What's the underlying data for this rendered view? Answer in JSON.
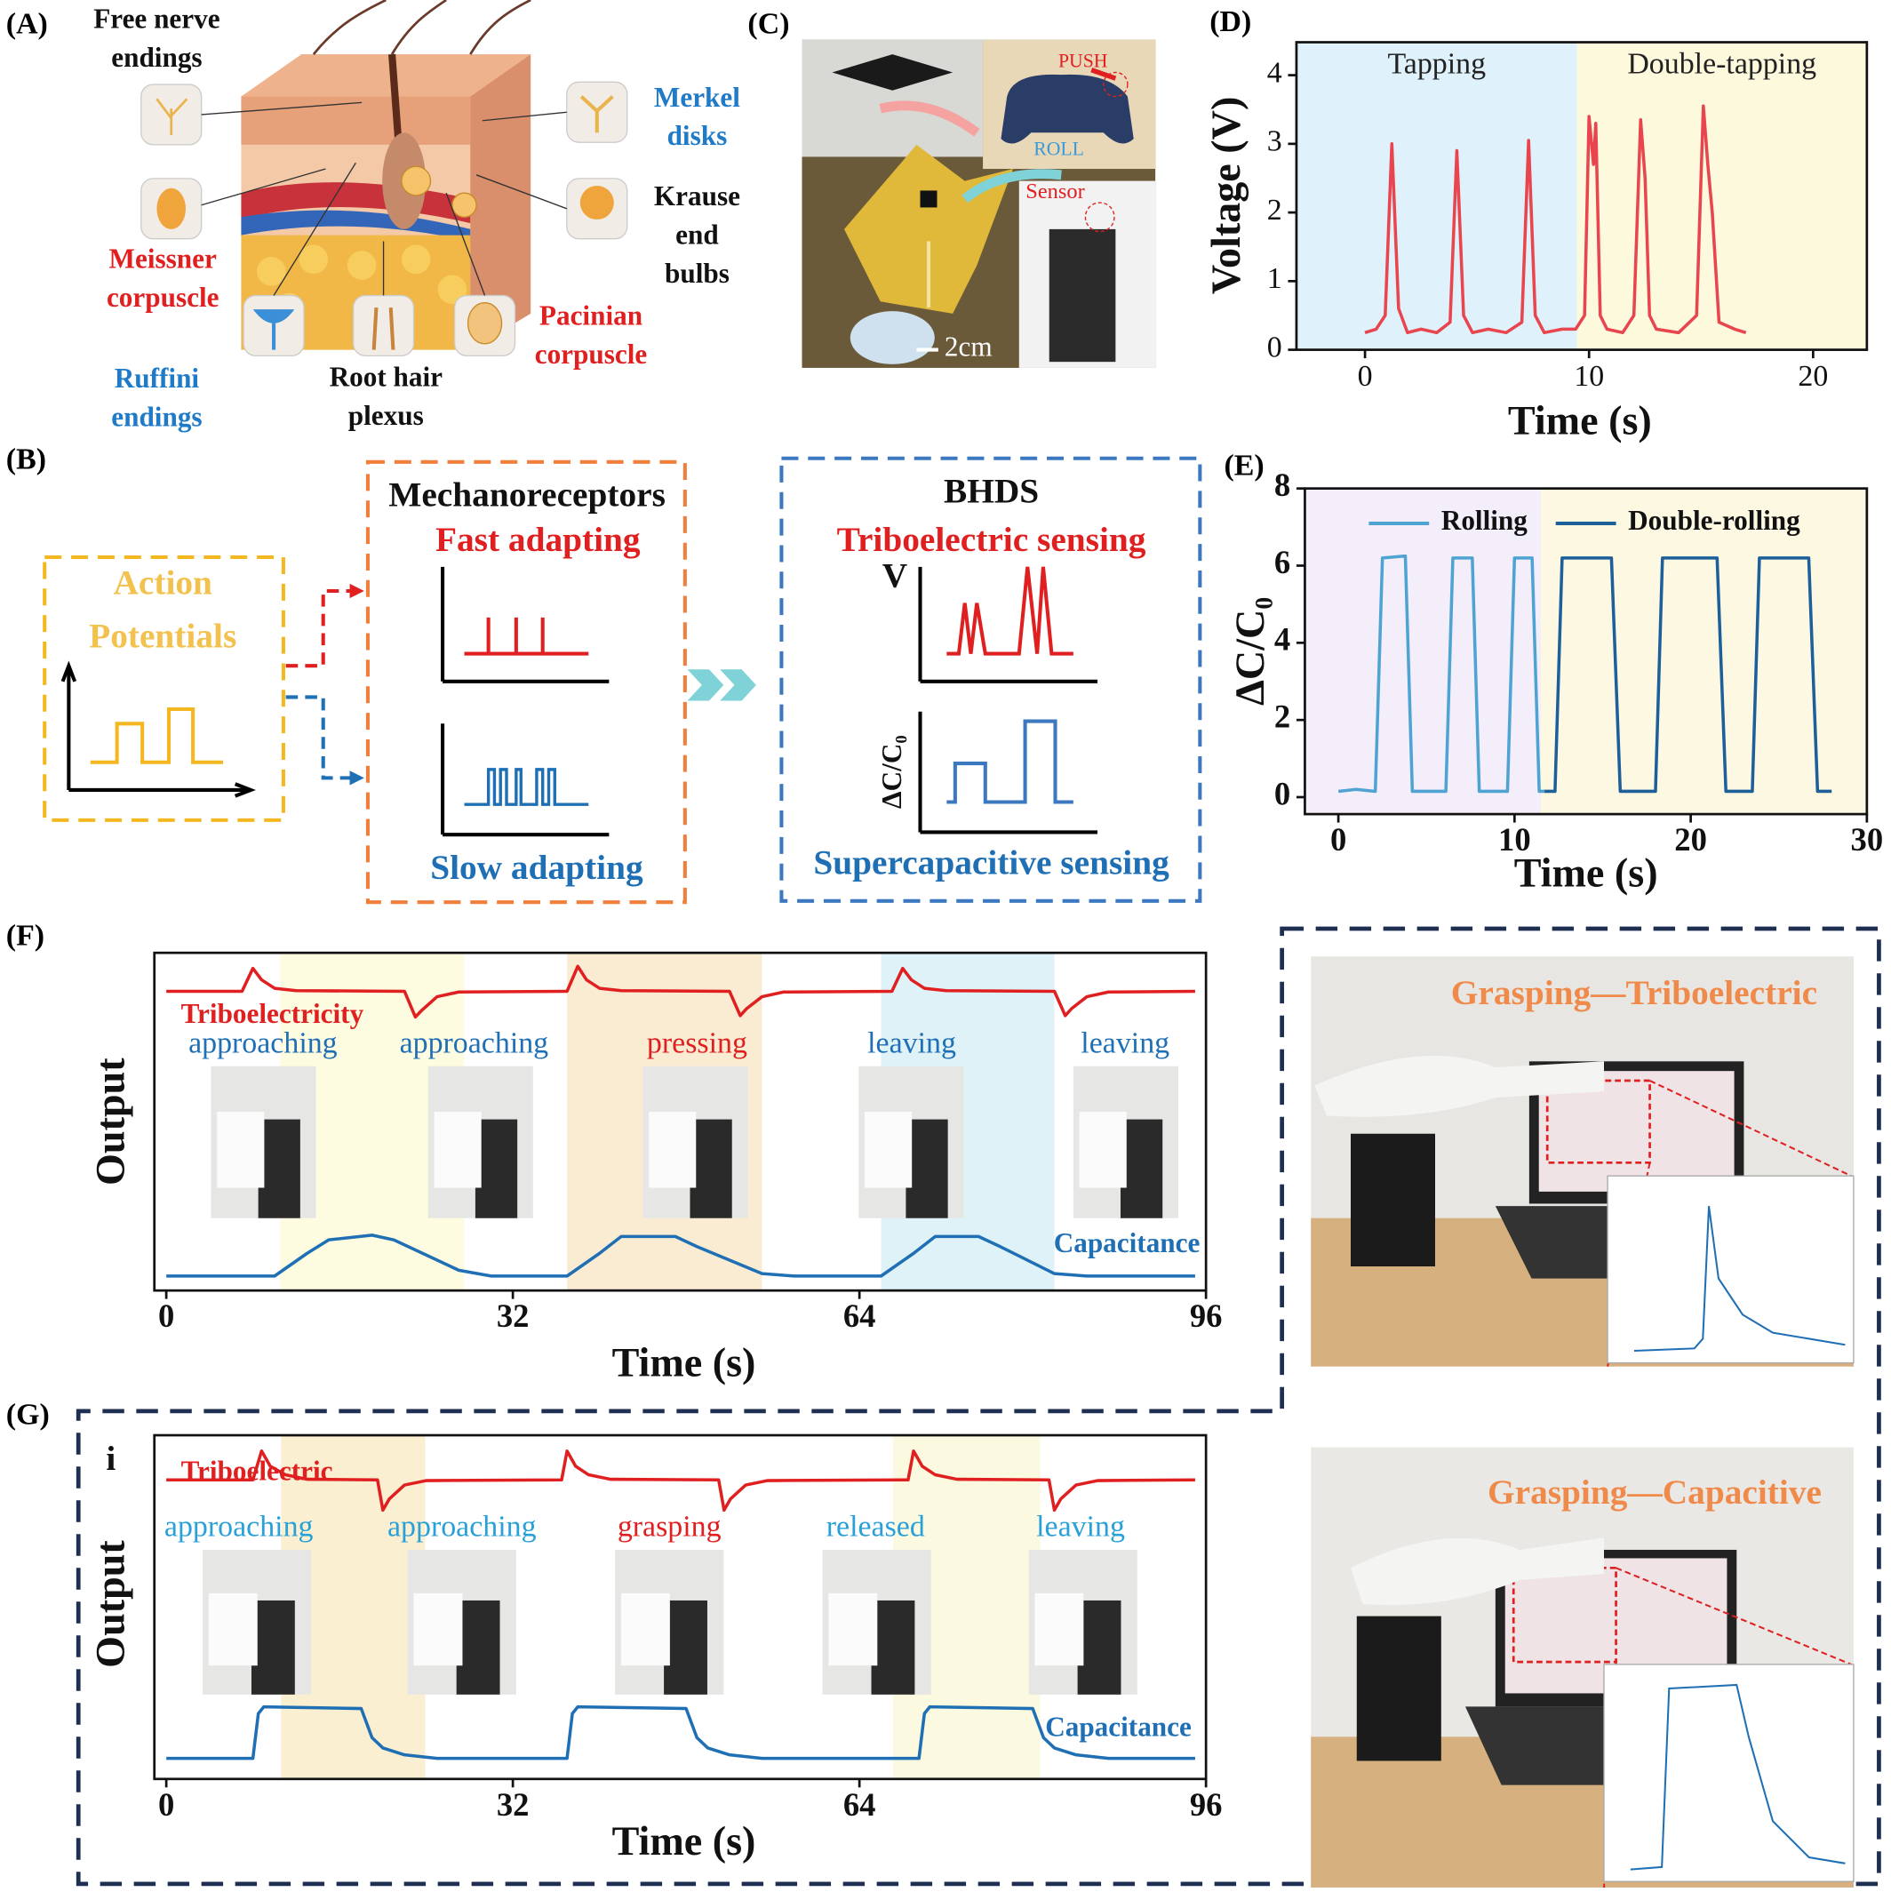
{
  "panel_labels": [
    "(A)",
    "(B)",
    "(C)",
    "(D)",
    "(E)",
    "(F)",
    "(G)"
  ],
  "panel_a": {
    "free_nerve_endings": [
      "Free nerve",
      "endings"
    ],
    "meissner_corpuscle": [
      "Meissner",
      "corpuscle"
    ],
    "ruffini_endings": [
      "Ruffini",
      "endings"
    ],
    "root_hair_plexus": [
      "Root hair",
      "plexus"
    ],
    "pacinian_corpuscle": [
      "Pacinian",
      "corpuscle"
    ],
    "merkel_disks": [
      "Merkel",
      "disks"
    ],
    "krause_end_bulbs": [
      "Krause",
      "end",
      "bulbs"
    ]
  },
  "panel_b": {
    "action_potentials": [
      "Action",
      "Potentials"
    ],
    "mechanoreceptors": "Mechanoreceptors",
    "fast_adapting": "Fast adapting",
    "slow_adapting": "Slow adapting",
    "bhds": "BHDS",
    "triboelectric_sensing": "Triboelectric sensing",
    "supercapacitive_sensing": "Supercapacitive sensing",
    "v_axis": "V",
    "c_axis": "ΔC/C₀"
  },
  "panel_c": {
    "push": "PUSH",
    "roll": "ROLL",
    "sensor": "Sensor",
    "scale_bar": "2cm"
  },
  "panel_f_photo": {
    "caption": "Grasping—Triboelectric"
  },
  "panel_g_photo": {
    "caption": "Grasping—Capacitive"
  },
  "chart_data": [
    {
      "type": "line",
      "x_label": "Time (s)",
      "y_label": "Voltage (V)",
      "xlim": [
        -3.06,
        22.4
      ],
      "xticks": [
        0,
        10,
        20
      ],
      "ylim": [
        0,
        4.48
      ],
      "yticks": [
        0,
        1,
        2,
        3,
        4
      ],
      "regions": [
        {
          "label": "Tapping",
          "range": [
            -3.06,
            9.46
          ],
          "color": "#dff1fa"
        },
        {
          "label": "Double-tapping",
          "range": [
            9.46,
            22.4
          ],
          "color": "#fcf9dd"
        }
      ],
      "color": "#e8454f",
      "x": [
        0,
        0.5,
        0.9,
        1.2,
        1.5,
        1.9,
        2.5,
        3.2,
        3.8,
        4.1,
        4.4,
        4.8,
        5.5,
        6.3,
        7.0,
        7.3,
        7.6,
        8,
        8.8,
        9.4,
        9.8,
        10.0,
        10.2,
        10.3,
        10.5,
        10.8,
        11.5,
        12,
        12.3,
        12.5,
        12.7,
        13,
        14,
        14.8,
        15.1,
        15.3,
        15.5,
        15.8,
        16.5,
        17
      ],
      "values": [
        0.25,
        0.3,
        0.5,
        3.0,
        0.6,
        0.25,
        0.3,
        0.25,
        0.4,
        2.9,
        0.5,
        0.25,
        0.3,
        0.25,
        0.4,
        3.05,
        0.5,
        0.25,
        0.3,
        0.3,
        0.5,
        3.4,
        2.7,
        3.3,
        0.5,
        0.3,
        0.25,
        0.5,
        3.35,
        2.5,
        0.5,
        0.3,
        0.25,
        0.5,
        3.55,
        2.7,
        2.0,
        0.4,
        0.3,
        0.25
      ]
    },
    {
      "type": "line",
      "x_label": "Time (s)",
      "y_label": "ΔC/C₀",
      "xlim": [
        -1.9,
        30
      ],
      "xticks": [
        0,
        10,
        20,
        30
      ],
      "ylim": [
        -0.44,
        8
      ],
      "yticks": [
        0,
        2,
        4,
        6,
        8
      ],
      "regions": [
        {
          "range": [
            -1.9,
            11.5
          ],
          "color": "#f4eefa"
        },
        {
          "range": [
            11.5,
            30
          ],
          "color": "#fcf8e2"
        }
      ],
      "series": [
        {
          "name": "Rolling",
          "color": "#4ea3d3",
          "x": [
            0,
            1,
            2.1,
            2.5,
            3.8,
            4.2,
            6.1,
            6.5,
            7.6,
            8.0,
            9.6,
            10.0,
            11.0,
            11.4,
            11.7
          ],
          "values": [
            0.15,
            0.2,
            0.15,
            6.2,
            6.25,
            0.15,
            0.15,
            6.2,
            6.2,
            0.15,
            0.15,
            6.2,
            6.2,
            0.15,
            0.15
          ]
        },
        {
          "name": "Double-rolling",
          "color": "#1d5f98",
          "x": [
            11.7,
            12.3,
            12.7,
            15.5,
            16.0,
            18.0,
            18.4,
            21.5,
            22,
            23.5,
            23.9,
            26.7,
            27.2,
            28
          ],
          "values": [
            0.15,
            0.15,
            6.2,
            6.2,
            0.15,
            0.15,
            6.2,
            6.2,
            0.15,
            0.15,
            6.2,
            6.2,
            0.15,
            0.15
          ]
        }
      ]
    },
    {
      "type": "line",
      "x_label": "Time (s)",
      "y_label": "Output",
      "xlim": [
        -1.1,
        96
      ],
      "xticks": [
        0,
        32,
        64,
        96
      ],
      "ylim": [
        0,
        10
      ],
      "regions": [
        {
          "range": [
            10.5,
            27.5
          ],
          "color": "#fdfbe0"
        },
        {
          "range": [
            37,
            55
          ],
          "color": "#faecd3"
        },
        {
          "range": [
            66,
            82
          ],
          "color": "#def2f8"
        }
      ],
      "annotations": [
        {
          "text": "approaching",
          "color": "#1f6fb5"
        },
        {
          "text": "approaching",
          "color": "#1f6fb5"
        },
        {
          "text": "pressing",
          "color": "#e02020"
        },
        {
          "text": "leaving",
          "color": "#1f6fb5"
        },
        {
          "text": "leaving",
          "color": "#1f6fb5"
        }
      ],
      "series": [
        {
          "name": "Triboelectricity",
          "color": "#e02020",
          "x": [
            0,
            7,
            8,
            8.8,
            10,
            12,
            22,
            23,
            23.6,
            25,
            27,
            37,
            38,
            38.8,
            40,
            42,
            52,
            53,
            53.6,
            55,
            57,
            67,
            68,
            68.8,
            70,
            72,
            82,
            83,
            83.6,
            85,
            87,
            95
          ],
          "values": [
            8.86,
            8.86,
            9.54,
            9.2,
            8.95,
            8.88,
            8.86,
            8.1,
            8.3,
            8.7,
            8.84,
            8.86,
            9.6,
            9.2,
            8.95,
            8.88,
            8.86,
            8.14,
            8.35,
            8.7,
            8.84,
            8.86,
            9.54,
            9.2,
            8.95,
            8.88,
            8.86,
            8.14,
            8.35,
            8.7,
            8.84,
            8.86
          ]
        },
        {
          "name": "Capacitance",
          "color": "#1f6fb5",
          "x": [
            0,
            10,
            13,
            15,
            19,
            21,
            27,
            30,
            37,
            40,
            42,
            47,
            49,
            55,
            58,
            66,
            69,
            71,
            75,
            77,
            82,
            85,
            95
          ],
          "values": [
            0.43,
            0.43,
            1.1,
            1.5,
            1.64,
            1.5,
            0.6,
            0.43,
            0.43,
            1.1,
            1.6,
            1.6,
            1.3,
            0.5,
            0.43,
            0.43,
            1.1,
            1.6,
            1.6,
            1.3,
            0.5,
            0.43,
            0.43
          ]
        }
      ]
    },
    {
      "type": "line",
      "x_label": "Time (s)",
      "y_label": "Output",
      "inset_label": "i",
      "xlim": [
        -1.1,
        96
      ],
      "xticks": [
        0,
        32,
        64,
        96
      ],
      "ylim": [
        0,
        10
      ],
      "regions": [
        {
          "range": [
            10.6,
            23.9
          ],
          "color": "#faefd0"
        },
        {
          "range": [
            67.1,
            80.7
          ],
          "color": "#fbfae0"
        }
      ],
      "annotations": [
        {
          "text": "approaching",
          "color": "#29a0d8"
        },
        {
          "text": "approaching",
          "color": "#29a0d8"
        },
        {
          "text": "grasping",
          "color": "#e02020"
        },
        {
          "text": "released",
          "color": "#29a0d8"
        },
        {
          "text": "leaving",
          "color": "#29a0d8"
        }
      ],
      "series": [
        {
          "name": "Triboelectric",
          "color": "#e02020",
          "x": [
            0,
            8,
            8.8,
            9.6,
            11,
            13,
            19.5,
            20,
            20.6,
            22,
            24,
            36.5,
            37,
            37.8,
            39,
            41,
            51,
            51.5,
            52.1,
            53.5,
            55.5,
            68.5,
            69,
            69.8,
            71,
            73,
            81.5,
            82,
            82.6,
            84,
            86,
            95
          ],
          "values": [
            8.7,
            8.7,
            9.54,
            9.1,
            8.85,
            8.72,
            8.7,
            7.82,
            8.15,
            8.55,
            8.68,
            8.7,
            9.54,
            9.1,
            8.85,
            8.72,
            8.7,
            7.82,
            8.15,
            8.55,
            8.68,
            8.7,
            9.54,
            9.1,
            8.85,
            8.72,
            8.7,
            7.82,
            8.15,
            8.55,
            8.68,
            8.7
          ]
        },
        {
          "name": "Capacitance",
          "color": "#1f6fb5",
          "x": [
            0,
            8,
            8.5,
            9,
            18,
            19,
            20,
            22,
            25,
            37,
            37.5,
            38,
            48,
            49,
            50,
            52,
            55,
            69.5,
            70,
            70.5,
            80,
            81,
            82,
            84,
            87,
            95
          ],
          "values": [
            0.6,
            0.6,
            1.9,
            2.1,
            2.05,
            1.2,
            0.9,
            0.7,
            0.6,
            0.6,
            1.9,
            2.1,
            2.05,
            1.2,
            0.9,
            0.7,
            0.6,
            0.6,
            1.9,
            2.1,
            2.05,
            1.2,
            0.9,
            0.7,
            0.6,
            0.6
          ]
        }
      ]
    }
  ]
}
